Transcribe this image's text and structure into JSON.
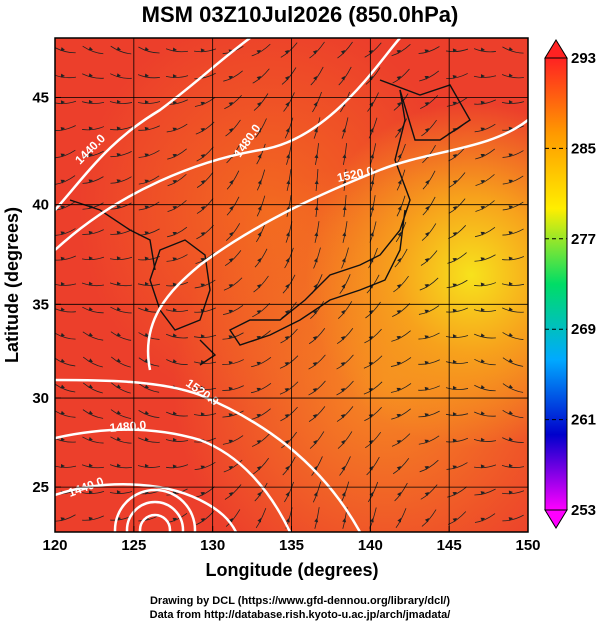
{
  "title": "MSM 03Z10Jul2026 (850.0hPa)",
  "x_axis": {
    "label": "Longitude (degrees)",
    "lim": [
      120,
      150
    ],
    "ticks": [
      120,
      125,
      130,
      135,
      140,
      145,
      150
    ]
  },
  "y_axis": {
    "label": "Latitude  (degrees)",
    "lim": [
      22.4,
      47.6
    ],
    "ticks": [
      25,
      30,
      35,
      40,
      45
    ],
    "projection": "mercator"
  },
  "colorbar": {
    "lim": [
      253,
      293
    ],
    "ticks": [
      253,
      261,
      269,
      277,
      285,
      293
    ],
    "colors": [
      "#ff00ff",
      "#0000cc",
      "#00aaff",
      "#00dd66",
      "#ffee00",
      "#ff9900",
      "#ff2222"
    ]
  },
  "contour_labels": [
    "1440.0",
    "1480.0",
    "1520.0",
    "1520.0",
    "1480.0",
    "1440.0"
  ],
  "footer": [
    "Drawing by DCL (https://www.gfd-dennou.org/library/dcl/)",
    "Data from http://database.rish.kyoto-u.ac.jp/arch/jmadata/"
  ]
}
